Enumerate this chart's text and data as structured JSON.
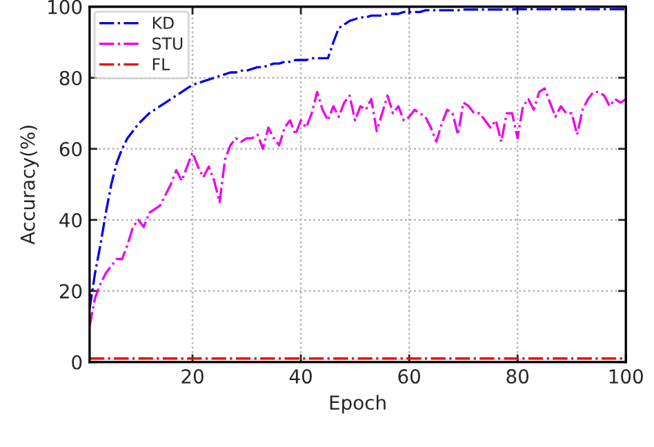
{
  "chart_data": {
    "type": "line",
    "xlabel": "Epoch",
    "ylabel": "Accuracy(%)",
    "x": [
      1,
      2,
      3,
      4,
      5,
      6,
      7,
      8,
      9,
      10,
      11,
      12,
      13,
      14,
      15,
      16,
      17,
      18,
      19,
      20,
      21,
      22,
      23,
      24,
      25,
      26,
      27,
      28,
      29,
      30,
      31,
      32,
      33,
      34,
      35,
      36,
      37,
      38,
      39,
      40,
      41,
      42,
      43,
      44,
      45,
      46,
      47,
      48,
      49,
      50,
      51,
      52,
      53,
      54,
      55,
      56,
      57,
      58,
      59,
      60,
      61,
      62,
      63,
      64,
      65,
      66,
      67,
      68,
      69,
      70,
      71,
      72,
      73,
      74,
      75,
      76,
      77,
      78,
      79,
      80,
      81,
      82,
      83,
      84,
      85,
      86,
      87,
      88,
      89,
      90,
      91,
      92,
      93,
      94,
      95,
      96,
      97,
      98,
      99,
      100
    ],
    "series": [
      {
        "name": "KD",
        "color": "#0000ee",
        "values": [
          15,
          25,
          33,
          42,
          50,
          56,
          60,
          63,
          65,
          67,
          68.5,
          70,
          71,
          72,
          73,
          74,
          75,
          76,
          77,
          78,
          78.5,
          79,
          79.5,
          80,
          80.5,
          81,
          81.5,
          81.5,
          82,
          82,
          82.5,
          83,
          83,
          83.5,
          84,
          84,
          84.5,
          84.5,
          85,
          85,
          85,
          85.5,
          85.5,
          85.5,
          85.5,
          90,
          94,
          95,
          96,
          96.5,
          97,
          97,
          97.5,
          97.5,
          97.5,
          98,
          98,
          98,
          98.5,
          98.5,
          98.5,
          98.5,
          99,
          99,
          99,
          99,
          99,
          99,
          99,
          99.2,
          99.2,
          99.2,
          99.2,
          99.2,
          99.2,
          99.2,
          99.2,
          99.2,
          99.2,
          99.3,
          99.3,
          99.3,
          99.3,
          99.3,
          99.3,
          99.3,
          99.3,
          99.3,
          99.3,
          99.3,
          99.3,
          99.3,
          99.3,
          99.3,
          99.3,
          99.3,
          99.3,
          99.3,
          99.3,
          99.3
        ]
      },
      {
        "name": "STU",
        "color": "#ee00ee",
        "values": [
          10,
          18,
          22,
          25,
          27,
          29,
          29,
          33,
          38,
          40,
          38,
          42,
          43,
          44,
          47,
          50,
          54,
          51,
          55,
          59,
          55,
          52,
          55,
          51,
          45,
          57,
          61,
          63,
          62,
          63,
          63,
          64,
          60,
          66,
          63,
          61,
          66,
          68,
          64,
          68,
          66,
          70,
          76,
          71,
          68,
          72,
          69,
          73,
          75,
          68,
          72,
          71,
          74,
          65,
          70,
          75,
          70,
          72,
          68,
          69,
          71,
          70,
          69,
          66,
          62,
          67,
          71,
          70,
          64,
          73,
          72,
          70,
          70,
          68,
          66,
          68,
          62,
          70,
          70,
          63,
          72,
          74,
          71,
          76,
          77,
          73,
          69,
          72,
          70,
          70,
          64,
          71,
          74,
          76,
          76,
          75,
          72,
          74,
          73,
          74
        ]
      },
      {
        "name": "FL",
        "color": "#ee0000",
        "values": [
          1,
          1,
          1,
          1,
          1,
          1,
          1,
          1,
          1,
          1,
          1,
          1,
          1,
          1,
          1,
          1,
          1,
          1,
          1,
          1,
          1,
          1,
          1,
          1,
          1,
          1,
          1,
          1,
          1,
          1,
          1,
          1,
          1,
          1,
          1,
          1,
          1,
          1,
          1,
          1,
          1,
          1,
          1,
          1,
          1,
          1,
          1,
          1,
          1,
          1,
          1,
          1,
          1,
          1,
          1,
          1,
          1,
          1,
          1,
          1,
          1,
          1,
          1,
          1,
          1,
          1,
          1,
          1,
          1,
          1,
          1,
          1,
          1,
          1,
          1,
          1,
          1,
          1,
          1,
          1,
          1,
          1,
          1,
          1,
          1,
          1,
          1,
          1,
          1,
          1,
          1,
          1,
          1,
          1,
          1,
          1,
          1,
          1,
          1,
          1
        ]
      }
    ],
    "xlim": [
      1,
      100
    ],
    "ylim": [
      0,
      100
    ],
    "xticks": [
      20,
      40,
      60,
      80,
      100
    ],
    "yticks": [
      0,
      20,
      40,
      60,
      80,
      100
    ],
    "grid": true,
    "legend": "top left",
    "line_style": "dashdot"
  }
}
